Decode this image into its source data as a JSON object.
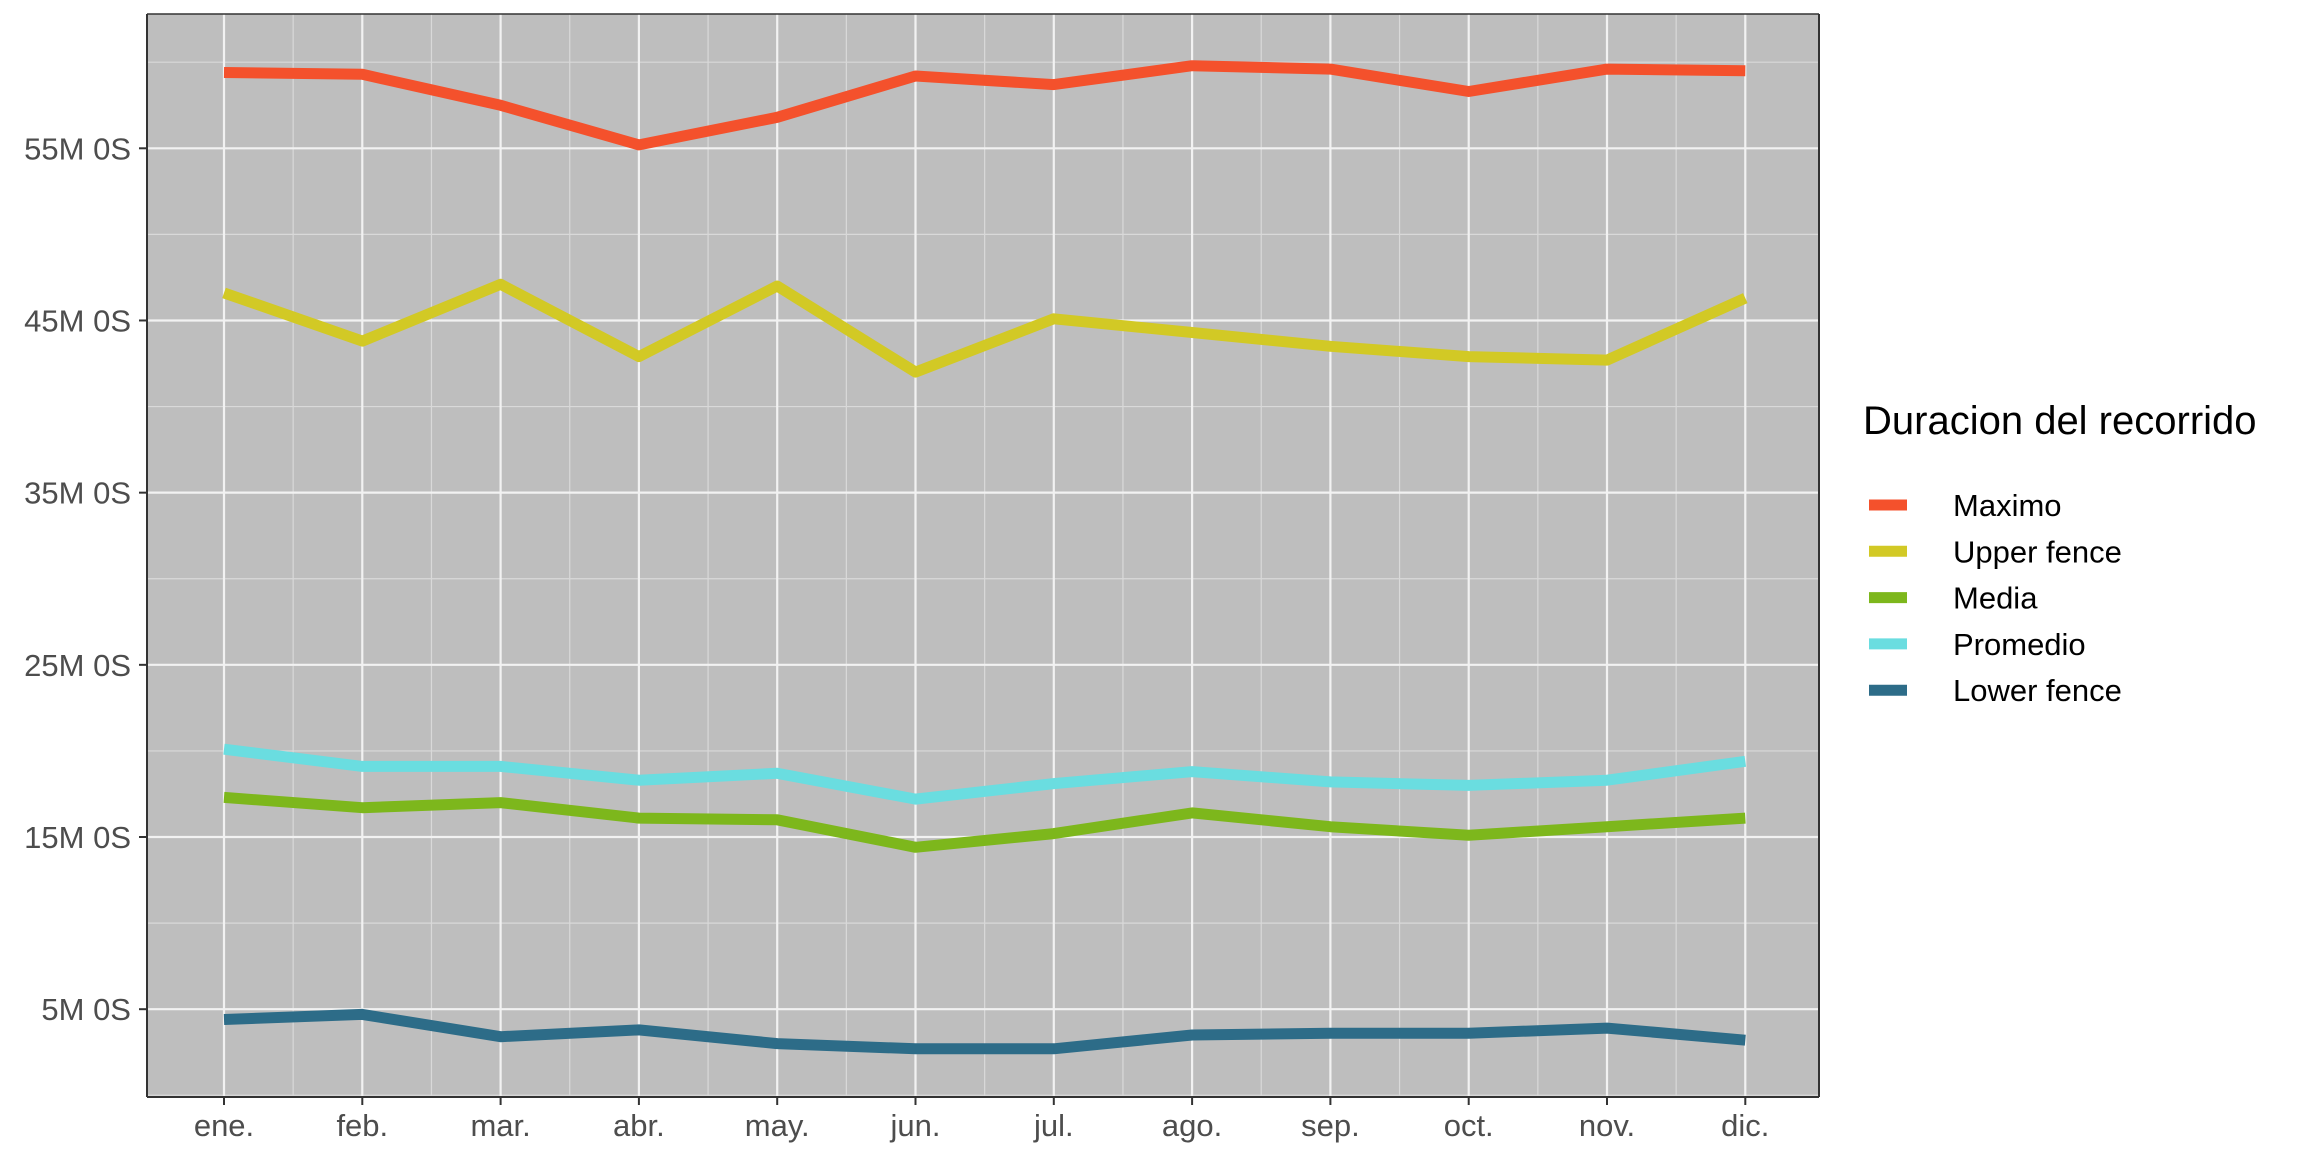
{
  "chart_data": {
    "type": "line",
    "title": "",
    "xlabel": "",
    "ylabel": "",
    "categories": [
      "ene.",
      "feb.",
      "mar.",
      "abr.",
      "may.",
      "jun.",
      "jul.",
      "ago.",
      "sep.",
      "oct.",
      "nov.",
      "dic."
    ],
    "y_ticks": [
      {
        "value": 5,
        "label": "5M 0S"
      },
      {
        "value": 15,
        "label": "15M 0S"
      },
      {
        "value": 25,
        "label": "25M 0S"
      },
      {
        "value": 35,
        "label": "35M 0S"
      },
      {
        "value": 45,
        "label": "45M 0S"
      },
      {
        "value": 55,
        "label": "55M 0S"
      }
    ],
    "y_unit": "minutes",
    "ylim": [
      -0.1,
      62.8
    ],
    "grid": true,
    "legend": {
      "title": "Duracion del recorrido",
      "position": "right"
    },
    "series": [
      {
        "name": "Maximo",
        "color": "#F4512C",
        "values": [
          59.4,
          59.3,
          57.5,
          55.2,
          56.8,
          59.2,
          58.7,
          59.8,
          59.6,
          58.3,
          59.6,
          59.5
        ]
      },
      {
        "name": "Upper fence",
        "color": "#D2C925",
        "values": [
          46.6,
          43.8,
          47.1,
          42.9,
          47.0,
          42.0,
          45.1,
          44.3,
          43.5,
          42.9,
          42.7,
          46.3
        ]
      },
      {
        "name": "Media",
        "color": "#7DB71C",
        "values": [
          17.3,
          16.7,
          17.0,
          16.1,
          16.0,
          14.4,
          15.2,
          16.4,
          15.6,
          15.1,
          15.6,
          16.1
        ]
      },
      {
        "name": "Promedio",
        "color": "#6ADDE0",
        "values": [
          20.1,
          19.1,
          19.1,
          18.3,
          18.7,
          17.2,
          18.1,
          18.8,
          18.2,
          18.0,
          18.3,
          19.4
        ]
      },
      {
        "name": "Lower fence",
        "color": "#2D6C88",
        "values": [
          4.4,
          4.7,
          3.4,
          3.8,
          3.0,
          2.7,
          2.7,
          3.5,
          3.6,
          3.6,
          3.9,
          3.2
        ]
      }
    ]
  }
}
